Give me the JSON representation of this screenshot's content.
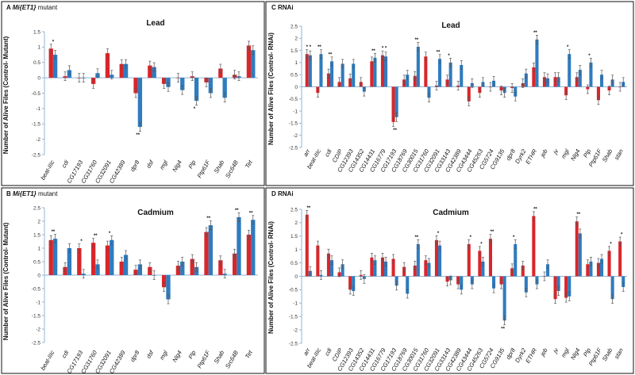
{
  "colors": {
    "control": "#d9262b",
    "mutant": "#2f7cbf"
  },
  "chart_data": [
    {
      "id": "A",
      "type": "bar",
      "panel_letter": "A",
      "panel_label_pre": "Mi{ET1}",
      "panel_label_post": " mutant",
      "title": "Lead",
      "ylabel": "Number of Alive Files (Control- Mutant)",
      "ylim": [
        -2.5,
        1.5
      ],
      "yticks": [
        "-2.5",
        "-2",
        "-1.5",
        "-1",
        "-0.5",
        "0",
        "0.5",
        "1",
        "1.5"
      ],
      "categories": [
        "beat-IIIc",
        "cdi",
        "CG17193",
        "CG31760",
        "CG32091",
        "CG42389",
        "dpr8",
        "dsf",
        "mgl",
        "Nlg4",
        "Plp",
        "Ptp61F",
        "Shab",
        "Src64B",
        "Tet"
      ],
      "series": [
        {
          "name": "red",
          "values": [
            0.95,
            0.05,
            0.0,
            -0.2,
            0.8,
            0.45,
            -0.5,
            0.4,
            -0.2,
            0.0,
            0.05,
            -0.15,
            0.3,
            0.1,
            1.05
          ]
        },
        {
          "name": "blue",
          "values": [
            0.75,
            0.25,
            0.0,
            0.15,
            0.1,
            0.45,
            -1.6,
            0.35,
            -0.3,
            -0.4,
            -0.75,
            -0.5,
            -0.65,
            0.05,
            0.9
          ]
        }
      ],
      "stars": [
        "*",
        "",
        "",
        "",
        "",
        "",
        "**",
        "",
        "",
        "",
        "*",
        "",
        "",
        "",
        ""
      ]
    },
    {
      "id": "B",
      "type": "bar",
      "panel_letter": "B",
      "panel_label_pre": "Mi{ET1}",
      "panel_label_post": " mutant",
      "title": "Cadmium",
      "ylabel": "Number of Alive Files (Control- Mutant)",
      "ylim": [
        -2.5,
        2.5
      ],
      "yticks": [
        "-2.5",
        "-2",
        "-1.5",
        "-1",
        "-0.5",
        "0",
        "0.5",
        "1",
        "1.5",
        "2",
        "2.5"
      ],
      "categories": [
        "beat-IIIc",
        "cdi",
        "CG17193",
        "CG31760",
        "CG32091",
        "CG42389",
        "dpr8",
        "dsf",
        "mgl",
        "Nlg4",
        "Plp",
        "Ptp61F",
        "Shab",
        "Src64B",
        "Tet"
      ],
      "series": [
        {
          "name": "red",
          "values": [
            1.3,
            0.3,
            1.0,
            1.2,
            1.1,
            0.5,
            0.2,
            0.3,
            -0.45,
            0.35,
            0.6,
            1.6,
            0.55,
            0.8,
            1.5
          ]
        },
        {
          "name": "blue",
          "values": [
            1.35,
            1.0,
            0.05,
            0.4,
            1.3,
            0.75,
            0.4,
            0.0,
            -0.9,
            0.5,
            0.3,
            1.85,
            0.05,
            2.15,
            2.05
          ]
        }
      ],
      "stars": [
        "**",
        "",
        "*",
        "**",
        "*",
        "",
        "",
        "",
        "",
        "",
        "",
        "**",
        "",
        "**",
        "**"
      ]
    },
    {
      "id": "C",
      "type": "bar",
      "panel_letter": "C",
      "panel_label_pre": "RNAi",
      "panel_label_post": "",
      "title": "Lead",
      "ylabel": "Number of Alive Files (Control- RNAi)",
      "ylim": [
        -2.5,
        2.5
      ],
      "yticks": [
        "-2.5",
        "-2",
        "-1.5",
        "-1",
        "-0.5",
        "0",
        "0.5",
        "1",
        "1.5",
        "2",
        "2.5"
      ],
      "categories": [
        "arr",
        "beat-IIIc",
        "cdi",
        "CDIP",
        "CG12393",
        "CG14352",
        "CG14431",
        "CG16779",
        "CG17193",
        "CG18769",
        "CG30015",
        "CG31760",
        "CG32091",
        "CG33143",
        "CG42389",
        "CG43444",
        "CG45263",
        "CG5724",
        "CG9135",
        "dpr8",
        "Dyrk2",
        "ETHR",
        "jeb",
        "jv",
        "mgl",
        "Nlg4",
        "Plp",
        "Ptp61F",
        "Shab",
        "stan"
      ],
      "series": [
        {
          "name": "red",
          "values": [
            1.35,
            -0.25,
            0.55,
            0.2,
            0.35,
            0.2,
            1.05,
            1.3,
            -1.45,
            0.3,
            0.45,
            1.25,
            0.05,
            0.3,
            0.05,
            -0.6,
            -0.25,
            0.0,
            -0.15,
            -0.05,
            0.15,
            0.8,
            0.4,
            0.4,
            -0.35,
            0.4,
            -0.1,
            -0.55,
            -0.15,
            0.0
          ]
        },
        {
          "name": "blue",
          "values": [
            1.3,
            1.35,
            1.05,
            0.95,
            0.95,
            -0.2,
            1.2,
            1.25,
            -1.25,
            0.5,
            1.65,
            -0.45,
            1.15,
            1.0,
            0.9,
            0.15,
            0.2,
            0.25,
            -0.25,
            -0.4,
            0.55,
            1.95,
            0.35,
            0.4,
            1.35,
            0.7,
            1.0,
            0.5,
            0.3,
            0.2
          ]
        }
      ],
      "stars": [
        "* *",
        "**",
        "**",
        "",
        "",
        "",
        "**",
        "* *",
        "**",
        "",
        "**",
        "",
        "**",
        "*",
        "",
        "",
        "",
        "",
        "",
        "",
        "",
        "**",
        "",
        "",
        "*",
        "",
        "*",
        "",
        "",
        ""
      ]
    },
    {
      "id": "D",
      "type": "bar",
      "panel_letter": "D",
      "panel_label_pre": "RNAi",
      "panel_label_post": "",
      "title": "Cadmium",
      "ylabel": "Number of Alive Files (Control- RNAi)",
      "ylim": [
        -2.5,
        2.5
      ],
      "yticks": [
        "-2.5",
        "-2",
        "-1.5",
        "-1",
        "-0.5",
        "0",
        "0.5",
        "1",
        "1.5",
        "2",
        "2.5"
      ],
      "categories": [
        "arr",
        "beat-IIIc",
        "cdi",
        "CDIP",
        "CG12393",
        "CG14352",
        "CG14431",
        "CG16779",
        "CG17193",
        "CG18769",
        "CG30015",
        "CG31760",
        "CG32091",
        "CG33143",
        "CG42389",
        "CG43444",
        "CG45263",
        "CG5724",
        "CG9135",
        "dpr8",
        "Dyrk2",
        "ETHR",
        "jeb",
        "jv",
        "mgl",
        "Nlg4",
        "Plp",
        "Ptp61F",
        "Shab",
        "stan"
      ],
      "series": [
        {
          "name": "red",
          "values": [
            2.3,
            1.15,
            0.85,
            0.15,
            -0.5,
            0.05,
            0.7,
            0.7,
            0.65,
            0.35,
            0.4,
            0.6,
            1.35,
            -0.2,
            -0.3,
            1.2,
            0.95,
            1.4,
            -0.3,
            0.3,
            0.4,
            2.25,
            0.0,
            -0.85,
            -0.8,
            2.05,
            0.45,
            0.5,
            0.95,
            1.3
          ]
        },
        {
          "name": "blue",
          "values": [
            0.2,
            0.05,
            0.6,
            0.45,
            -0.55,
            -0.1,
            0.6,
            0.55,
            -0.35,
            -0.65,
            1.2,
            0.5,
            1.15,
            -0.15,
            -0.5,
            -0.3,
            0.55,
            -0.45,
            -1.65,
            1.2,
            -0.6,
            -0.3,
            0.45,
            -0.55,
            -0.75,
            1.6,
            0.55,
            0.65,
            -0.85,
            -0.4
          ]
        }
      ],
      "stars": [
        "**",
        "",
        "",
        "",
        "",
        "",
        "",
        "",
        "",
        "",
        "**",
        "",
        "*",
        "",
        "",
        "*",
        "*",
        "**",
        "**",
        "*",
        "",
        "**",
        "",
        "",
        "",
        "**",
        "",
        "",
        "*",
        "*"
      ]
    }
  ]
}
